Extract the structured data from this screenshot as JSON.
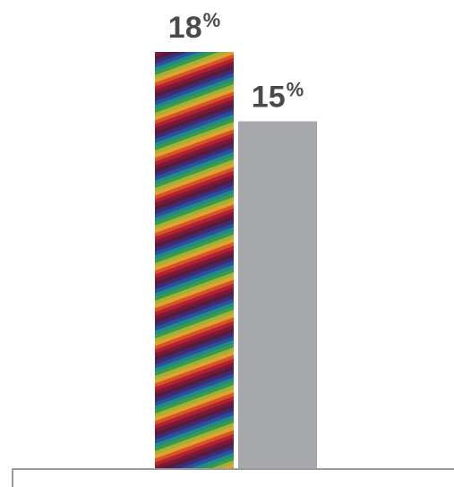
{
  "chart_data": {
    "type": "bar",
    "categories": [
      "",
      ""
    ],
    "values": [
      18,
      15
    ],
    "value_labels": [
      {
        "number": "18",
        "unit": "%"
      },
      {
        "number": "15",
        "unit": "%"
      }
    ],
    "ylim": [
      0,
      18
    ],
    "grid": false,
    "colors": {
      "bar_2": "#a7a8ab",
      "axis": "#9b9b9b",
      "label": "#4a4a4a",
      "bar_1_stripes": [
        "#5a1a3a",
        "#3a2e7a",
        "#2e4f9a",
        "#1f8a8a",
        "#3b9a4a",
        "#a0b23a",
        "#e0a22a",
        "#d2562a",
        "#b8202e",
        "#7a1a3a"
      ]
    }
  }
}
